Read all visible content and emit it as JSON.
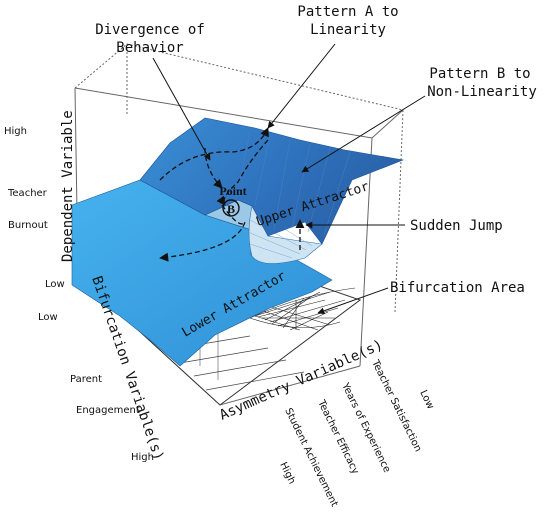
{
  "annotations": {
    "divergence_line1": "Divergence of",
    "divergence_line2": "Behavior",
    "pattern_a_line1": "Pattern A to",
    "pattern_a_line2": "Linearity",
    "pattern_b_line1": "Pattern B to",
    "pattern_b_line2": "Non-Linearity",
    "sudden_jump": "Sudden Jump",
    "bifurcation_area": "Bifurcation Area"
  },
  "surface_labels": {
    "upper_attractor": "Upper Attractor",
    "lower_attractor": "Lower Attractor",
    "point_label": "Point",
    "point_letter": "B"
  },
  "axes": {
    "dependent": {
      "title": "Dependent Variable",
      "high": "High",
      "name_line1": "Teacher",
      "name_line2": "Burnout",
      "low": "Low"
    },
    "bifurcation": {
      "title": "Bifurcation Variable(s)",
      "low": "Low",
      "name_line1": "Parent",
      "name_line2": "Engagement",
      "high": "High"
    },
    "asymmetry": {
      "title": "Asymmetry Variable(s)",
      "items": [
        "Teacher Satisfaction",
        "Years of Experience",
        "Teacher Efficacy",
        "Student Achievement"
      ],
      "low": "Low",
      "high": "High"
    }
  },
  "colors": {
    "surface_dark": "#2e6fb6",
    "surface_light": "#3fa9e8",
    "fold": "#b8d8ee",
    "box": "#555555"
  }
}
